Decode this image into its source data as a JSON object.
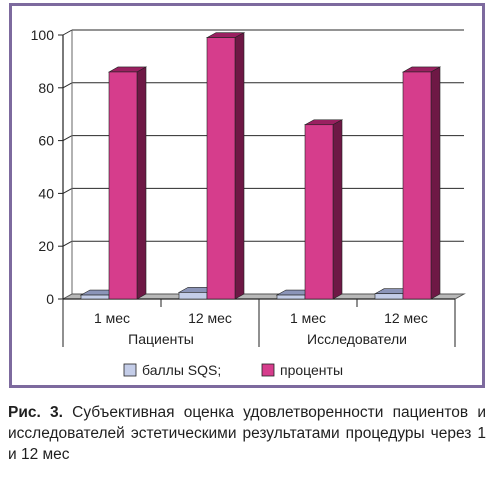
{
  "colors": {
    "frame": "#7d6a9e",
    "bar_front": "#d63d8c",
    "bar_top": "#9a2060",
    "bar_side": "#6e1845",
    "small_front": "#c4cde8",
    "small_top": "#8b94b8",
    "small_side": "#5c6590",
    "grid": "#2a2a2a",
    "floor": "#b8b8b8"
  },
  "chart_data": {
    "type": "bar",
    "groups": [
      "Пациенты",
      "Исследователи"
    ],
    "categories": [
      "1 мес",
      "12 мес",
      "1 мес",
      "12 мес"
    ],
    "series": [
      {
        "name": "баллы SQS;",
        "values": [
          1.5,
          2.5,
          1.5,
          2
        ]
      },
      {
        "name": "проценты",
        "values": [
          86,
          99,
          66,
          86
        ]
      }
    ],
    "ylim": [
      0,
      100
    ],
    "yticks": [
      0,
      20,
      40,
      60,
      80,
      100
    ],
    "grid": true,
    "legend_position": "bottom"
  },
  "caption": {
    "label": "Рис. 3.",
    "text": " Субъективная оценка удовлетворенности пациентов и исследователей эстетическими результатами процедуры через 1 и 12 мес"
  }
}
